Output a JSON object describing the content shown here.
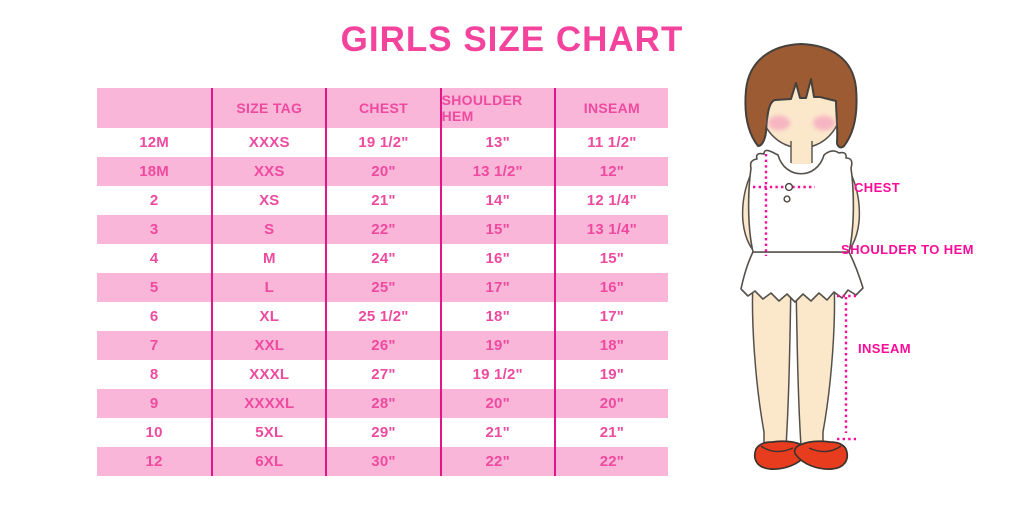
{
  "chart_data": {
    "type": "table",
    "title": "GIRLS SIZE CHART",
    "columns": [
      "",
      "SIZE TAG",
      "CHEST",
      "SHOULDER HEM",
      "INSEAM"
    ],
    "rows": [
      [
        "12M",
        "XXXS",
        "19 1/2\"",
        "13\"",
        "11 1/2\""
      ],
      [
        "18M",
        "XXS",
        "20\"",
        "13 1/2\"",
        "12\""
      ],
      [
        "2",
        "XS",
        "21\"",
        "14\"",
        "12 1/4\""
      ],
      [
        "3",
        "S",
        "22\"",
        "15\"",
        "13 1/4\""
      ],
      [
        "4",
        "M",
        "24\"",
        "16\"",
        "15\""
      ],
      [
        "5",
        "L",
        "25\"",
        "17\"",
        "16\""
      ],
      [
        "6",
        "XL",
        "25 1/2\"",
        "18\"",
        "17\""
      ],
      [
        "7",
        "XXL",
        "26\"",
        "19\"",
        "18\""
      ],
      [
        "8",
        "XXXL",
        "27\"",
        "19 1/2\"",
        "19\""
      ],
      [
        "9",
        "XXXXL",
        "28\"",
        "20\"",
        "20\""
      ],
      [
        "10",
        "5XL",
        "29\"",
        "21\"",
        "21\""
      ],
      [
        "12",
        "6XL",
        "30\"",
        "22\"",
        "22\""
      ]
    ],
    "layout_hints": {
      "row_striping": "alternating white and pink, first data row white, header pink",
      "column_separators": "vertical magenta lines between all 5 columns"
    }
  },
  "diagram": {
    "chest_label": "CHEST",
    "shoulder_hem_label": "SHOULDER TO HEM",
    "inseam_label": "INSEAM"
  },
  "colors": {
    "title_pink": "#f4439d",
    "table_text_pink": "#ee4aa0",
    "band_pink": "#f9b6d8",
    "separator_magenta": "#e21589",
    "measure_magenta": "#fb0c98",
    "hair_brown": "#9d5b33",
    "skin": "#fbe8cb",
    "cheek_pink": "#f5a9c0",
    "shoe_red": "#e83c1e"
  }
}
